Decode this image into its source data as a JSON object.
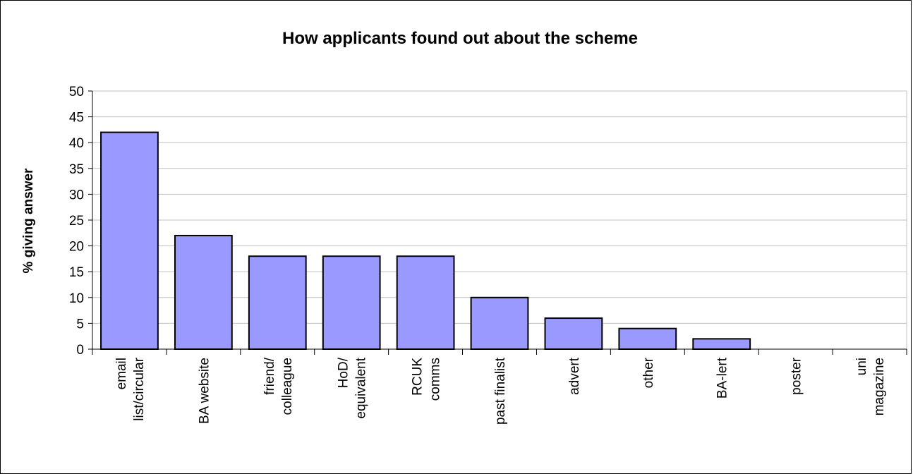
{
  "chart_data": {
    "type": "bar",
    "title": "How applicants found out about the scheme",
    "xlabel": "",
    "ylabel": "% giving answer",
    "ylim": [
      0,
      50
    ],
    "yticks": [
      0,
      5,
      10,
      15,
      20,
      25,
      30,
      35,
      40,
      45,
      50
    ],
    "grid": true,
    "legend": "none",
    "bar_color": "#9999ff",
    "categories": [
      [
        "email",
        "list/circular"
      ],
      [
        "BA website"
      ],
      [
        "friend/",
        "colleague"
      ],
      [
        "HoD/",
        "equivalent"
      ],
      [
        "RCUK",
        "comms"
      ],
      [
        "past finalist"
      ],
      [
        "advert"
      ],
      [
        "other"
      ],
      [
        "BA-lert"
      ],
      [
        "poster"
      ],
      [
        "uni",
        "magazine"
      ]
    ],
    "values": [
      42,
      22,
      18,
      18,
      18,
      10,
      6,
      4,
      2,
      0,
      0
    ]
  }
}
